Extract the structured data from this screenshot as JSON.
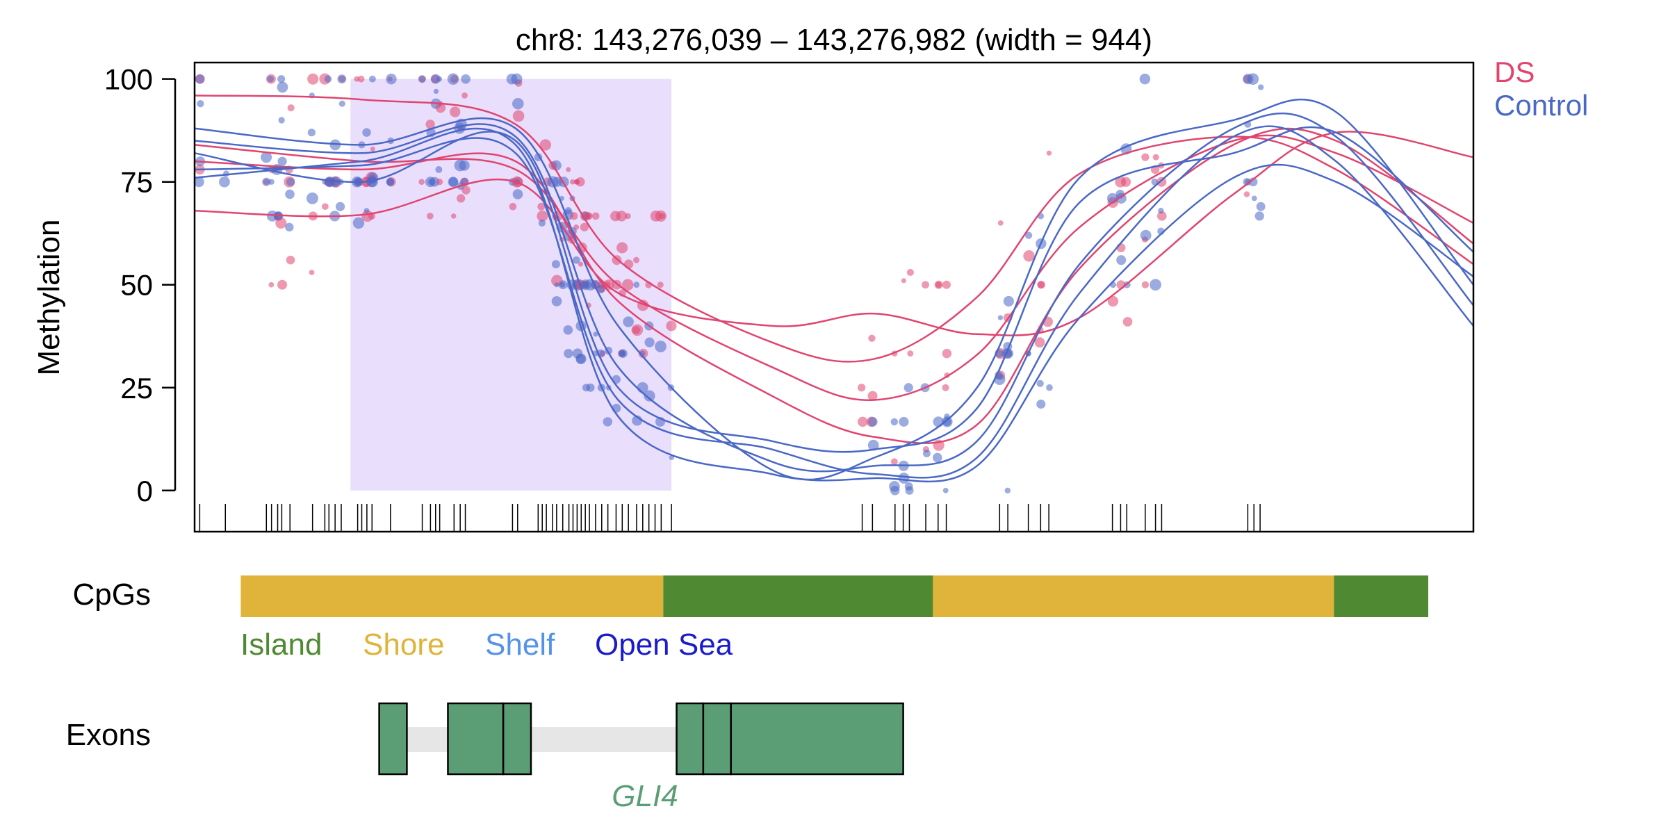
{
  "chart_data": {
    "type": "scatter",
    "title": "chr8: 143,276,039 – 143,276,982 (width = 944)",
    "ylabel": "Methylation",
    "yticks": [
      0,
      25,
      50,
      75,
      100
    ],
    "ylim": [
      -10,
      104
    ],
    "xlim": [
      143275887,
      143277134
    ],
    "legend": {
      "placement": "top-right",
      "entries": [
        {
          "label": "DS",
          "color": "#e0456f"
        },
        {
          "label": "Control",
          "color": "#4a68c6"
        }
      ]
    },
    "highlight": {
      "start": 143276039,
      "end": 143276352,
      "color": "#e9defc"
    },
    "series": [
      {
        "name": "DS",
        "color": "#e0456f",
        "smooth_curves": [
          {
            "x": [
              143275887,
              143276050,
              143276200,
              143276300,
              143276450,
              143276550,
              143276650,
              143276750,
              143276900,
              143277000,
              143277134
            ],
            "y": [
              96,
              95,
              89,
              56,
              36,
              32,
              47,
              77,
              86,
              78,
              55
            ]
          },
          {
            "x": [
              143275887,
              143276050,
              143276200,
              143276300,
              143276450,
              143276550,
              143276650,
              143276750,
              143276900,
              143277000,
              143277134
            ],
            "y": [
              84,
              80,
              78,
              50,
              30,
              22,
              33,
              64,
              85,
              82,
              65
            ]
          },
          {
            "x": [
              143275887,
              143276050,
              143276200,
              143276300,
              143276450,
              143276550,
              143276650,
              143276750,
              143276900,
              143277000,
              143277134
            ],
            "y": [
              68,
              67,
              75,
              48,
              40,
              43,
              38,
              42,
              72,
              87,
              81
            ]
          },
          {
            "x": [
              143275887,
              143276050,
              143276200,
              143276300,
              143276450,
              143276550,
              143276650,
              143276750,
              143276900,
              143277000,
              143277134
            ],
            "y": [
              80,
              78,
              80,
              46,
              23,
              13,
              16,
              54,
              84,
              85,
              60
            ]
          }
        ]
      },
      {
        "name": "Control",
        "color": "#4a68c6",
        "smooth_curves": [
          {
            "x": [
              143275887,
              143276050,
              143276200,
              143276300,
              143276450,
              143276550,
              143276650,
              143276750,
              143276900,
              143277000,
              143277134
            ],
            "y": [
              88,
              84,
              88,
              40,
              5,
              8,
              25,
              76,
              90,
              92,
              50
            ]
          },
          {
            "x": [
              143275887,
              143276050,
              143276200,
              143276300,
              143276450,
              143276550,
              143276650,
              143276750,
              143276900,
              143277000,
              143277134
            ],
            "y": [
              85,
              82,
              86,
              30,
              7,
              6,
              12,
              55,
              88,
              86,
              45
            ]
          },
          {
            "x": [
              143275887,
              143276050,
              143276200,
              143276300,
              143276450,
              143276550,
              143276650,
              143276750,
              143276900,
              143277000,
              143277134
            ],
            "y": [
              78,
              79,
              82,
              22,
              10,
              4,
              8,
              48,
              86,
              80,
              40
            ]
          },
          {
            "x": [
              143275887,
              143276050,
              143276200,
              143276300,
              143276450,
              143276550,
              143276650,
              143276750,
              143276900,
              143277000,
              143277134
            ],
            "y": [
              76,
              80,
              84,
              18,
              4,
              3,
              6,
              42,
              76,
              75,
              52
            ]
          },
          {
            "x": [
              143275887,
              143276050,
              143276200,
              143276300,
              143276450,
              143276550,
              143276650,
              143276750,
              143276900,
              143277000,
              143277134
            ],
            "y": [
              82,
              75,
              85,
              25,
              12,
              10,
              20,
              70,
              82,
              87,
              58
            ]
          }
        ]
      }
    ],
    "cpg_positions": [
      143275892,
      143275917,
      143275957,
      143275962,
      143275968,
      143275972,
      143275980,
      143276002,
      143276014,
      143276018,
      143276024,
      143276030,
      143276046,
      143276050,
      143276055,
      143276060,
      143276078,
      143276109,
      143276117,
      143276122,
      143276126,
      143276140,
      143276146,
      143276151,
      143276197,
      143276202,
      143276222,
      143276226,
      143276230,
      143276236,
      143276240,
      143276246,
      143276252,
      143276256,
      143276260,
      143276264,
      143276268,
      143276272,
      143276278,
      143276284,
      143276290,
      143276298,
      143276304,
      143276310,
      143276318,
      143276324,
      143276330,
      143276336,
      143276342,
      143276352,
      143276538,
      143276548,
      143276570,
      143276578,
      143276584,
      143276600,
      143276612,
      143276620,
      143276672,
      143276680,
      143276700,
      143276712,
      143276720,
      143276782,
      143276790,
      143276796,
      143276814,
      143276824,
      143276830,
      143276914,
      143276920,
      143276926
    ],
    "tracks": {
      "cpg": {
        "label": "CpGs",
        "segments": [
          {
            "start": 143275932,
            "end": 143276344,
            "category": "Shore"
          },
          {
            "start": 143276344,
            "end": 143276607,
            "category": "Island"
          },
          {
            "start": 143276607,
            "end": 143276998,
            "category": "Shore"
          },
          {
            "start": 143276998,
            "end": 143277090,
            "category": "Island"
          }
        ],
        "legend": [
          {
            "label": "Island",
            "color": "#4f8a32"
          },
          {
            "label": "Shore",
            "color": "#e0b43a"
          },
          {
            "label": "Shelf",
            "color": "#5592ea"
          },
          {
            "label": "Open Sea",
            "color": "#1a1ccc"
          }
        ]
      },
      "exons": {
        "label": "Exons",
        "gene": "GLI4",
        "gene_color": "#5b9e76",
        "intron_span": [
          143276067,
          143276357
        ],
        "exons": [
          {
            "start": 143276067,
            "end": 143276094
          },
          {
            "start": 143276134,
            "end": 143276188
          },
          {
            "start": 143276188,
            "end": 143276215
          },
          {
            "start": 143276357,
            "end": 143276383
          },
          {
            "start": 143276383,
            "end": 143276410
          },
          {
            "start": 143276410,
            "end": 143276578
          }
        ]
      }
    }
  }
}
